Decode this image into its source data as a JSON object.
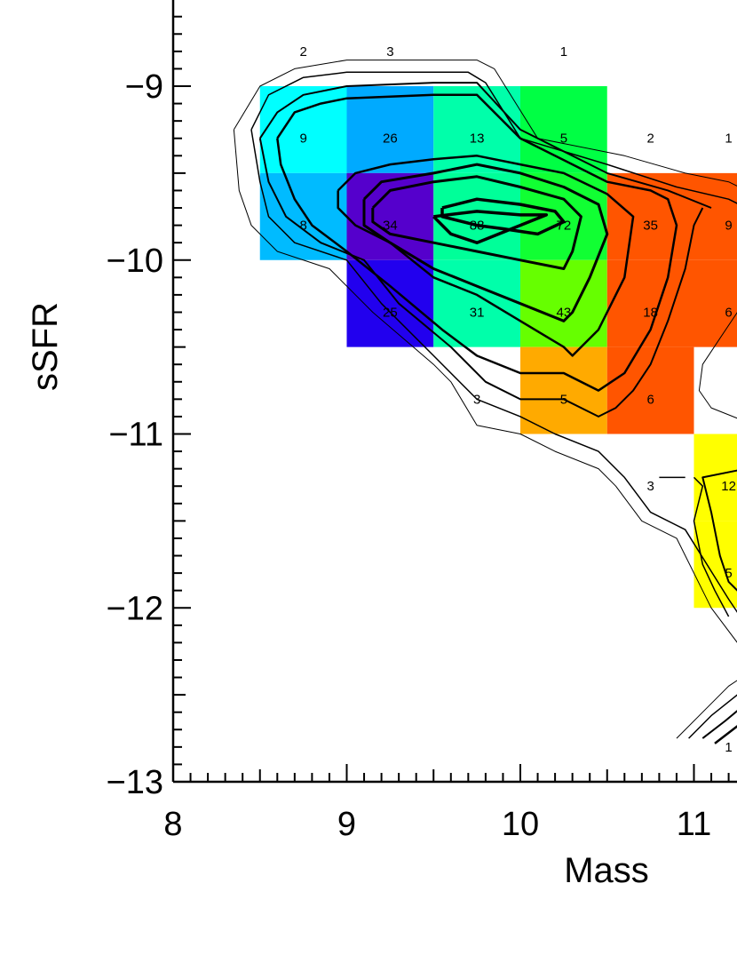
{
  "chart_data": {
    "type": "heatmap",
    "xlabel": "Mass",
    "ylabel": "sSFR",
    "xlim": [
      8,
      12
    ],
    "ylim": [
      -13,
      -8.5
    ],
    "x_ticks": [
      {
        "value": 8,
        "label": "8"
      },
      {
        "value": 9,
        "label": "9"
      },
      {
        "value": 10,
        "label": "10"
      },
      {
        "value": 11,
        "label": "11"
      }
    ],
    "y_ticks": [
      {
        "value": -9,
        "label": "−9"
      },
      {
        "value": -10,
        "label": "−10"
      },
      {
        "value": -11,
        "label": "−11"
      },
      {
        "value": -12,
        "label": "−12"
      },
      {
        "value": -13,
        "label": "−13"
      }
    ],
    "cells": [
      {
        "x0": 8.5,
        "x1": 9.0,
        "y0": -9.5,
        "y1": -9.0,
        "color": "#00ffff"
      },
      {
        "x0": 9.0,
        "x1": 9.5,
        "y0": -9.5,
        "y1": -9.0,
        "color": "#00aaff"
      },
      {
        "x0": 9.5,
        "x1": 10.0,
        "y0": -9.5,
        "y1": -9.0,
        "color": "#00ffaa"
      },
      {
        "x0": 10.0,
        "x1": 10.5,
        "y0": -9.5,
        "y1": -9.0,
        "color": "#00ff44"
      },
      {
        "x0": 8.5,
        "x1": 9.0,
        "y0": -10.0,
        "y1": -9.5,
        "color": "#00bbff"
      },
      {
        "x0": 9.0,
        "x1": 9.5,
        "y0": -10.0,
        "y1": -9.5,
        "color": "#5500cc"
      },
      {
        "x0": 9.5,
        "x1": 10.0,
        "y0": -10.0,
        "y1": -9.5,
        "color": "#00ff99"
      },
      {
        "x0": 10.0,
        "x1": 10.5,
        "y0": -10.0,
        "y1": -9.5,
        "color": "#11ff33"
      },
      {
        "x0": 10.5,
        "x1": 11.0,
        "y0": -10.0,
        "y1": -9.5,
        "color": "#ff5500"
      },
      {
        "x0": 11.0,
        "x1": 11.5,
        "y0": -10.0,
        "y1": -9.5,
        "color": "#ff5500"
      },
      {
        "x0": 9.0,
        "x1": 9.5,
        "y0": -10.5,
        "y1": -10.0,
        "color": "#2200ee"
      },
      {
        "x0": 9.5,
        "x1": 10.0,
        "y0": -10.5,
        "y1": -10.0,
        "color": "#00ffaa"
      },
      {
        "x0": 10.0,
        "x1": 10.5,
        "y0": -10.5,
        "y1": -10.0,
        "color": "#66ff00"
      },
      {
        "x0": 10.5,
        "x1": 11.0,
        "y0": -10.5,
        "y1": -10.0,
        "color": "#ff5500"
      },
      {
        "x0": 11.0,
        "x1": 11.5,
        "y0": -10.5,
        "y1": -10.0,
        "color": "#ff5500"
      },
      {
        "x0": 10.0,
        "x1": 10.5,
        "y0": -11.0,
        "y1": -10.5,
        "color": "#ffaa00"
      },
      {
        "x0": 10.5,
        "x1": 11.0,
        "y0": -11.0,
        "y1": -10.5,
        "color": "#ff5500"
      },
      {
        "x0": 11.0,
        "x1": 11.5,
        "y0": -11.5,
        "y1": -11.0,
        "color": "#ffff00"
      },
      {
        "x0": 11.0,
        "x1": 11.5,
        "y0": -12.0,
        "y1": -11.5,
        "color": "#ffff00"
      }
    ],
    "labels": [
      {
        "x": 8.75,
        "y": -8.8,
        "text": "2"
      },
      {
        "x": 9.25,
        "y": -8.8,
        "text": "3"
      },
      {
        "x": 10.25,
        "y": -8.8,
        "text": "1"
      },
      {
        "x": 8.75,
        "y": -9.3,
        "text": "9"
      },
      {
        "x": 9.25,
        "y": -9.3,
        "text": "26"
      },
      {
        "x": 9.75,
        "y": -9.3,
        "text": "13"
      },
      {
        "x": 10.25,
        "y": -9.3,
        "text": "5"
      },
      {
        "x": 10.75,
        "y": -9.3,
        "text": "2"
      },
      {
        "x": 11.2,
        "y": -9.3,
        "text": "1"
      },
      {
        "x": 8.75,
        "y": -9.8,
        "text": "8"
      },
      {
        "x": 9.25,
        "y": -9.8,
        "text": "34"
      },
      {
        "x": 9.75,
        "y": -9.8,
        "text": "88"
      },
      {
        "x": 10.25,
        "y": -9.8,
        "text": "72"
      },
      {
        "x": 10.75,
        "y": -9.8,
        "text": "35"
      },
      {
        "x": 11.2,
        "y": -9.8,
        "text": "9"
      },
      {
        "x": 9.25,
        "y": -10.3,
        "text": "25"
      },
      {
        "x": 9.75,
        "y": -10.3,
        "text": "31"
      },
      {
        "x": 10.25,
        "y": -10.3,
        "text": "43"
      },
      {
        "x": 10.75,
        "y": -10.3,
        "text": "18"
      },
      {
        "x": 11.2,
        "y": -10.3,
        "text": "6"
      },
      {
        "x": 9.75,
        "y": -10.8,
        "text": "3"
      },
      {
        "x": 10.25,
        "y": -10.8,
        "text": "5"
      },
      {
        "x": 10.75,
        "y": -10.8,
        "text": "6"
      },
      {
        "x": 10.75,
        "y": -11.3,
        "text": "3"
      },
      {
        "x": 11.2,
        "y": -11.3,
        "text": "12"
      },
      {
        "x": 11.2,
        "y": -11.8,
        "text": "5"
      },
      {
        "x": 11.2,
        "y": -12.8,
        "text": "1"
      }
    ],
    "contours": [
      {
        "weight": 1,
        "points": [
          [
            8.35,
            -9.25
          ],
          [
            8.5,
            -9.0
          ],
          [
            8.7,
            -8.9
          ],
          [
            9.0,
            -8.85
          ],
          [
            9.5,
            -8.85
          ],
          [
            9.75,
            -8.85
          ],
          [
            9.85,
            -8.9
          ],
          [
            10.1,
            -9.3
          ],
          [
            10.6,
            -9.4
          ],
          [
            10.95,
            -9.5
          ],
          [
            11.2,
            -9.55
          ],
          [
            11.3,
            -9.6
          ]
        ]
      },
      {
        "weight": 1,
        "points": [
          [
            8.35,
            -9.25
          ],
          [
            8.38,
            -9.6
          ],
          [
            8.45,
            -9.8
          ],
          [
            8.6,
            -9.95
          ],
          [
            8.9,
            -10.05
          ],
          [
            9.15,
            -10.3
          ],
          [
            9.5,
            -10.6
          ],
          [
            9.6,
            -10.7
          ],
          [
            9.75,
            -10.95
          ],
          [
            10.0,
            -11.0
          ],
          [
            10.2,
            -11.1
          ],
          [
            10.45,
            -11.2
          ],
          [
            10.55,
            -11.3
          ],
          [
            10.7,
            -11.5
          ],
          [
            10.9,
            -11.6
          ],
          [
            11.1,
            -12.0
          ],
          [
            11.25,
            -12.2
          ]
        ]
      },
      {
        "weight": 1,
        "points": [
          [
            11.35,
            -10.2
          ],
          [
            11.25,
            -10.3
          ],
          [
            11.15,
            -10.45
          ],
          [
            11.05,
            -10.6
          ],
          [
            11.03,
            -10.75
          ],
          [
            11.1,
            -10.85
          ],
          [
            11.35,
            -10.95
          ]
        ]
      },
      {
        "weight": 1.5,
        "points": [
          [
            8.45,
            -9.25
          ],
          [
            8.55,
            -9.05
          ],
          [
            8.75,
            -8.95
          ],
          [
            9.0,
            -8.92
          ],
          [
            9.5,
            -8.92
          ],
          [
            9.7,
            -8.92
          ],
          [
            9.8,
            -8.98
          ],
          [
            10.0,
            -9.3
          ],
          [
            10.5,
            -9.45
          ],
          [
            10.9,
            -9.58
          ],
          [
            11.2,
            -9.65
          ],
          [
            11.3,
            -9.7
          ]
        ]
      },
      {
        "weight": 1.5,
        "points": [
          [
            8.45,
            -9.25
          ],
          [
            8.5,
            -9.55
          ],
          [
            8.55,
            -9.75
          ],
          [
            8.7,
            -9.9
          ],
          [
            9.0,
            -10.0
          ],
          [
            9.2,
            -10.25
          ],
          [
            9.5,
            -10.55
          ],
          [
            9.75,
            -10.8
          ],
          [
            10.0,
            -10.9
          ],
          [
            10.2,
            -11.0
          ],
          [
            10.45,
            -11.1
          ],
          [
            10.6,
            -11.25
          ],
          [
            10.75,
            -11.45
          ],
          [
            10.95,
            -11.55
          ],
          [
            11.2,
            -11.95
          ],
          [
            11.3,
            -12.1
          ]
        ]
      },
      {
        "weight": 2,
        "points": [
          [
            8.5,
            -9.3
          ],
          [
            8.6,
            -9.15
          ],
          [
            8.75,
            -9.05
          ],
          [
            9.0,
            -9.0
          ],
          [
            9.5,
            -8.98
          ],
          [
            9.75,
            -8.98
          ],
          [
            10.0,
            -9.25
          ],
          [
            10.5,
            -9.5
          ],
          [
            10.85,
            -9.6
          ],
          [
            11.1,
            -9.7
          ]
        ]
      },
      {
        "weight": 2,
        "points": [
          [
            8.5,
            -9.3
          ],
          [
            8.55,
            -9.55
          ],
          [
            8.65,
            -9.75
          ],
          [
            8.85,
            -9.9
          ],
          [
            9.1,
            -10.0
          ],
          [
            9.3,
            -10.25
          ],
          [
            9.6,
            -10.5
          ],
          [
            9.8,
            -10.7
          ],
          [
            10.0,
            -10.8
          ],
          [
            10.25,
            -10.8
          ],
          [
            10.45,
            -10.9
          ],
          [
            10.55,
            -10.85
          ],
          [
            10.65,
            -10.75
          ],
          [
            10.75,
            -10.6
          ],
          [
            10.85,
            -10.35
          ],
          [
            10.95,
            -10.05
          ],
          [
            11.0,
            -9.8
          ],
          [
            11.05,
            -9.7
          ]
        ]
      },
      {
        "weight": 2.5,
        "points": [
          [
            8.6,
            -9.3
          ],
          [
            8.7,
            -9.15
          ],
          [
            8.85,
            -9.1
          ],
          [
            9.0,
            -9.07
          ],
          [
            9.5,
            -9.05
          ],
          [
            9.75,
            -9.05
          ],
          [
            10.0,
            -9.3
          ],
          [
            10.5,
            -9.55
          ],
          [
            10.75,
            -9.6
          ],
          [
            10.85,
            -9.65
          ],
          [
            10.9,
            -9.8
          ],
          [
            10.85,
            -10.1
          ],
          [
            10.75,
            -10.4
          ],
          [
            10.6,
            -10.65
          ],
          [
            10.45,
            -10.75
          ],
          [
            10.25,
            -10.65
          ],
          [
            10.0,
            -10.65
          ],
          [
            9.75,
            -10.55
          ],
          [
            9.55,
            -10.4
          ],
          [
            9.25,
            -10.15
          ],
          [
            9.0,
            -9.95
          ],
          [
            8.8,
            -9.8
          ],
          [
            8.7,
            -9.65
          ],
          [
            8.62,
            -9.45
          ],
          [
            8.6,
            -9.3
          ]
        ]
      },
      {
        "weight": 2.5,
        "points": [
          [
            8.95,
            -9.6
          ],
          [
            9.05,
            -9.5
          ],
          [
            9.25,
            -9.45
          ],
          [
            9.5,
            -9.42
          ],
          [
            9.75,
            -9.4
          ],
          [
            10.0,
            -9.45
          ],
          [
            10.25,
            -9.5
          ],
          [
            10.5,
            -9.62
          ],
          [
            10.65,
            -9.75
          ],
          [
            10.6,
            -10.1
          ],
          [
            10.45,
            -10.4
          ],
          [
            10.3,
            -10.55
          ],
          [
            10.25,
            -10.5
          ],
          [
            10.0,
            -10.35
          ],
          [
            9.75,
            -10.2
          ],
          [
            9.5,
            -10.1
          ],
          [
            9.25,
            -9.9
          ],
          [
            9.05,
            -9.8
          ],
          [
            8.95,
            -9.7
          ],
          [
            8.95,
            -9.6
          ]
        ]
      },
      {
        "weight": 3,
        "points": [
          [
            9.1,
            -9.65
          ],
          [
            9.2,
            -9.55
          ],
          [
            9.5,
            -9.5
          ],
          [
            9.75,
            -9.45
          ],
          [
            10.0,
            -9.5
          ],
          [
            10.25,
            -9.58
          ],
          [
            10.45,
            -9.68
          ],
          [
            10.5,
            -9.85
          ],
          [
            10.4,
            -10.1
          ],
          [
            10.3,
            -10.3
          ],
          [
            10.25,
            -10.35
          ],
          [
            10.0,
            -10.25
          ],
          [
            9.75,
            -10.15
          ],
          [
            9.5,
            -10.05
          ],
          [
            9.25,
            -9.9
          ],
          [
            9.1,
            -9.8
          ],
          [
            9.1,
            -9.65
          ]
        ]
      },
      {
        "weight": 3,
        "points": [
          [
            9.15,
            -9.7
          ],
          [
            9.25,
            -9.6
          ],
          [
            9.5,
            -9.55
          ],
          [
            9.75,
            -9.52
          ],
          [
            10.0,
            -9.58
          ],
          [
            10.25,
            -9.65
          ],
          [
            10.35,
            -9.75
          ],
          [
            10.3,
            -9.95
          ],
          [
            10.25,
            -10.05
          ],
          [
            10.0,
            -10.0
          ],
          [
            9.75,
            -9.95
          ],
          [
            9.5,
            -9.9
          ],
          [
            9.25,
            -9.85
          ],
          [
            9.15,
            -9.78
          ],
          [
            9.15,
            -9.7
          ]
        ]
      },
      {
        "weight": 3.5,
        "points": [
          [
            9.55,
            -9.7
          ],
          [
            9.75,
            -9.65
          ],
          [
            10.0,
            -9.68
          ],
          [
            10.2,
            -9.72
          ],
          [
            10.25,
            -9.78
          ],
          [
            10.1,
            -9.85
          ],
          [
            9.9,
            -9.82
          ],
          [
            9.75,
            -9.8
          ],
          [
            9.55,
            -9.75
          ],
          [
            9.55,
            -9.7
          ]
        ]
      },
      {
        "weight": 3.5,
        "points": [
          [
            9.5,
            -9.75
          ],
          [
            9.75,
            -9.72
          ],
          [
            10.0,
            -9.74
          ],
          [
            10.15,
            -9.74
          ],
          [
            10.0,
            -9.8
          ],
          [
            9.75,
            -9.9
          ],
          [
            9.6,
            -9.85
          ],
          [
            9.5,
            -9.75
          ]
        ]
      },
      {
        "weight": 2,
        "points": [
          [
            11.4,
            -11.15
          ],
          [
            11.3,
            -11.2
          ],
          [
            11.05,
            -11.25
          ],
          [
            11.1,
            -11.45
          ],
          [
            11.15,
            -11.7
          ],
          [
            11.2,
            -11.85
          ],
          [
            11.3,
            -11.95
          ],
          [
            11.4,
            -11.9
          ]
        ]
      },
      {
        "weight": 1.5,
        "points": [
          [
            10.8,
            -11.25
          ],
          [
            10.95,
            -11.25
          ]
        ]
      },
      {
        "weight": 1.5,
        "points": [
          [
            11.0,
            -11.25
          ],
          [
            11.05,
            -11.3
          ],
          [
            11.0,
            -11.5
          ],
          [
            11.05,
            -11.75
          ],
          [
            11.12,
            -11.9
          ],
          [
            11.2,
            -12.05
          ]
        ]
      },
      {
        "weight": 1,
        "points": [
          [
            10.9,
            -12.75
          ],
          [
            11.05,
            -12.6
          ],
          [
            11.2,
            -12.45
          ],
          [
            11.35,
            -12.35
          ]
        ]
      },
      {
        "weight": 1.5,
        "points": [
          [
            10.97,
            -12.75
          ],
          [
            11.1,
            -12.62
          ],
          [
            11.25,
            -12.5
          ],
          [
            11.35,
            -12.45
          ]
        ]
      },
      {
        "weight": 2,
        "points": [
          [
            11.05,
            -12.75
          ],
          [
            11.18,
            -12.65
          ],
          [
            11.3,
            -12.55
          ],
          [
            11.4,
            -12.5
          ]
        ]
      },
      {
        "weight": 2.5,
        "points": [
          [
            11.12,
            -12.78
          ],
          [
            11.25,
            -12.68
          ],
          [
            11.35,
            -12.6
          ],
          [
            11.42,
            -12.56
          ]
        ]
      }
    ]
  }
}
